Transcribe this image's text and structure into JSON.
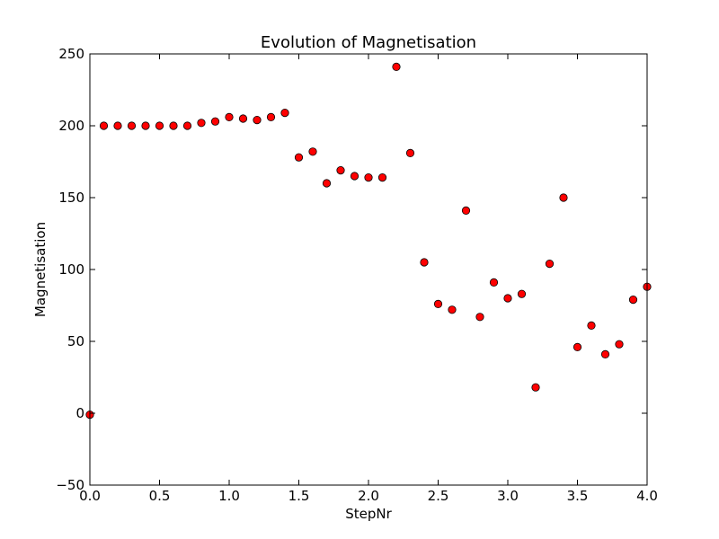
{
  "chart_data": {
    "type": "scatter",
    "title": "Evolution of Magnetisation",
    "xlabel": "StepNr",
    "ylabel": "Magnetisation",
    "xlim": [
      0.0,
      4.0
    ],
    "ylim": [
      -50,
      250
    ],
    "x_ticks": [
      0.0,
      0.5,
      1.0,
      1.5,
      2.0,
      2.5,
      3.0,
      3.5,
      4.0
    ],
    "x_tick_labels": [
      "0.0",
      "0.5",
      "1.0",
      "1.5",
      "2.0",
      "2.5",
      "3.0",
      "3.5",
      "4.0"
    ],
    "y_ticks": [
      -50,
      0,
      50,
      100,
      150,
      200,
      250
    ],
    "y_tick_labels": [
      "−50",
      "0",
      "50",
      "100",
      "150",
      "200",
      "250"
    ],
    "grid": false,
    "legend": "none",
    "series": [
      {
        "marker_color": "#ff0000",
        "marker_edge": "#000000",
        "x": [
          0.0,
          0.1,
          0.2,
          0.3,
          0.4,
          0.5,
          0.6,
          0.7,
          0.8,
          0.9,
          1.0,
          1.1,
          1.2,
          1.3,
          1.4,
          1.5,
          1.6,
          1.7,
          1.8,
          1.9,
          2.0,
          2.1,
          2.2,
          2.3,
          2.4,
          2.5,
          2.6,
          2.7,
          2.8,
          2.9,
          3.0,
          3.1,
          3.2,
          3.3,
          3.4,
          3.5,
          3.6,
          3.7,
          3.8,
          3.9,
          4.0
        ],
        "y": [
          -1,
          200,
          200,
          200,
          200,
          200,
          200,
          200,
          202,
          203,
          206,
          205,
          204,
          206,
          209,
          178,
          182,
          160,
          169,
          165,
          164,
          164,
          241,
          181,
          105,
          76,
          72,
          141,
          67,
          91,
          80,
          83,
          18,
          104,
          150,
          46,
          61,
          41,
          48,
          79,
          88
        ]
      }
    ]
  }
}
